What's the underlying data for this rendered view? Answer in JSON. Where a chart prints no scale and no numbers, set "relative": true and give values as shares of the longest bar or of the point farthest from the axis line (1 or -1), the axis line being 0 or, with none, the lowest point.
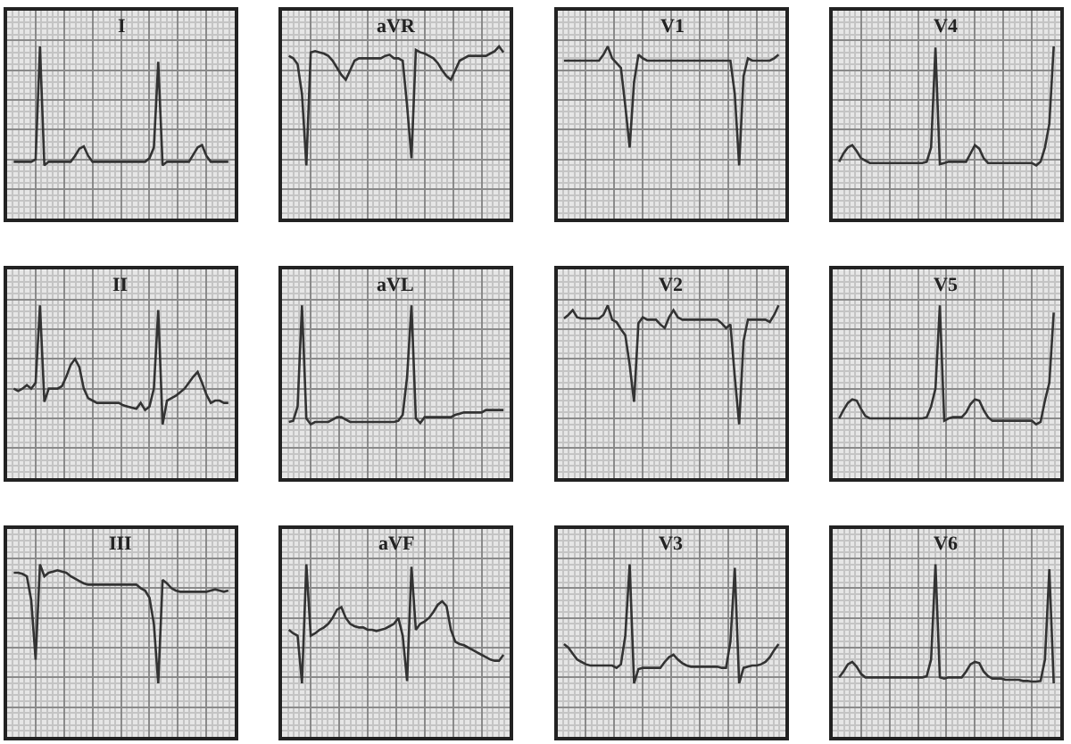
{
  "chart_data": [
    {
      "type": "line",
      "title": "I",
      "relative": true,
      "grid": true,
      "tick_labels": false,
      "categories": [
        null,
        null,
        null,
        null,
        null,
        null,
        null,
        null,
        null,
        null,
        null,
        null,
        null,
        null,
        null,
        null,
        null,
        null,
        null,
        null,
        null,
        null,
        null,
        null,
        null,
        null,
        null,
        null,
        null,
        null,
        null,
        null,
        null,
        null,
        null,
        null,
        null,
        null,
        null,
        null,
        null,
        null,
        null,
        null,
        null,
        null,
        null,
        null,
        null,
        null
      ],
      "series": [
        {
          "color": "#333333",
          "values": [
            0.03,
            0.03,
            0.03,
            0.03,
            0.03,
            0.05,
            1.0,
            0.0,
            0.03,
            0.03,
            0.03,
            0.03,
            0.03,
            0.03,
            0.08,
            0.14,
            0.16,
            0.08,
            0.03,
            0.03,
            0.03,
            0.03,
            0.03,
            0.03,
            0.03,
            0.03,
            0.03,
            0.03,
            0.03,
            0.03,
            0.03,
            0.06,
            0.15,
            0.87,
            0.0,
            0.03,
            0.03,
            0.03,
            0.03,
            0.03,
            0.03,
            0.09,
            0.15,
            0.17,
            0.08,
            0.03,
            0.03,
            0.03,
            0.03,
            0.03
          ]
        }
      ]
    },
    {
      "type": "line",
      "title": "aVR",
      "relative": true,
      "grid": true,
      "tick_labels": false,
      "categories": [
        null,
        null,
        null,
        null,
        null,
        null,
        null,
        null,
        null,
        null,
        null,
        null,
        null,
        null,
        null,
        null,
        null,
        null,
        null,
        null,
        null,
        null,
        null,
        null,
        null,
        null,
        null,
        null,
        null,
        null,
        null,
        null,
        null,
        null,
        null,
        null,
        null,
        null,
        null,
        null,
        null,
        null,
        null,
        null,
        null,
        null,
        null,
        null,
        null,
        null
      ],
      "series": [
        {
          "color": "#333333",
          "values": [
            0.92,
            0.9,
            0.85,
            0.6,
            0.0,
            0.95,
            0.96,
            0.95,
            0.94,
            0.92,
            0.88,
            0.82,
            0.76,
            0.72,
            0.8,
            0.88,
            0.9,
            0.9,
            0.9,
            0.9,
            0.9,
            0.9,
            0.92,
            0.93,
            0.9,
            0.9,
            0.88,
            0.5,
            0.06,
            0.97,
            0.95,
            0.94,
            0.92,
            0.9,
            0.86,
            0.8,
            0.75,
            0.72,
            0.8,
            0.88,
            0.9,
            0.92,
            0.92,
            0.92,
            0.92,
            0.92,
            0.94,
            0.96,
            1.0,
            0.95
          ]
        }
      ]
    },
    {
      "type": "line",
      "title": "V1",
      "relative": true,
      "grid": true,
      "tick_labels": false,
      "categories": [
        null,
        null,
        null,
        null,
        null,
        null,
        null,
        null,
        null,
        null,
        null,
        null,
        null,
        null,
        null,
        null,
        null,
        null,
        null,
        null,
        null,
        null,
        null,
        null,
        null,
        null,
        null,
        null,
        null,
        null,
        null,
        null,
        null,
        null,
        null,
        null,
        null,
        null,
        null,
        null,
        null,
        null,
        null,
        null,
        null,
        null,
        null,
        null,
        null,
        null
      ],
      "series": [
        {
          "color": "#333333",
          "values": [
            0.88,
            0.88,
            0.88,
            0.88,
            0.88,
            0.88,
            0.88,
            0.88,
            0.88,
            0.93,
            1.0,
            0.9,
            0.86,
            0.82,
            0.5,
            0.15,
            0.7,
            0.93,
            0.9,
            0.88,
            0.88,
            0.88,
            0.88,
            0.88,
            0.88,
            0.88,
            0.88,
            0.88,
            0.88,
            0.88,
            0.88,
            0.88,
            0.88,
            0.88,
            0.88,
            0.88,
            0.88,
            0.88,
            0.88,
            0.6,
            0.0,
            0.75,
            0.9,
            0.88,
            0.88,
            0.88,
            0.88,
            0.88,
            0.9,
            0.93
          ]
        }
      ]
    },
    {
      "type": "line",
      "title": "V4",
      "relative": true,
      "grid": true,
      "tick_labels": false,
      "categories": [
        null,
        null,
        null,
        null,
        null,
        null,
        null,
        null,
        null,
        null,
        null,
        null,
        null,
        null,
        null,
        null,
        null,
        null,
        null,
        null,
        null,
        null,
        null,
        null,
        null,
        null,
        null,
        null,
        null,
        null,
        null,
        null,
        null,
        null,
        null,
        null,
        null,
        null,
        null,
        null,
        null,
        null,
        null,
        null,
        null,
        null,
        null,
        null,
        null,
        null
      ],
      "series": [
        {
          "color": "#333333",
          "values": [
            0.03,
            0.1,
            0.15,
            0.17,
            0.12,
            0.06,
            0.04,
            0.02,
            0.02,
            0.02,
            0.02,
            0.02,
            0.02,
            0.02,
            0.02,
            0.02,
            0.02,
            0.02,
            0.02,
            0.02,
            0.03,
            0.15,
            0.99,
            0.01,
            0.02,
            0.03,
            0.03,
            0.03,
            0.03,
            0.03,
            0.1,
            0.17,
            0.14,
            0.06,
            0.02,
            0.02,
            0.02,
            0.02,
            0.02,
            0.02,
            0.02,
            0.02,
            0.02,
            0.02,
            0.02,
            0.0,
            0.03,
            0.15,
            0.35,
            1.0
          ]
        }
      ]
    },
    {
      "type": "line",
      "title": "II",
      "relative": true,
      "grid": true,
      "tick_labels": false,
      "categories": [
        null,
        null,
        null,
        null,
        null,
        null,
        null,
        null,
        null,
        null,
        null,
        null,
        null,
        null,
        null,
        null,
        null,
        null,
        null,
        null,
        null,
        null,
        null,
        null,
        null,
        null,
        null,
        null,
        null,
        null,
        null,
        null,
        null,
        null,
        null,
        null,
        null,
        null,
        null,
        null,
        null,
        null,
        null,
        null,
        null,
        null,
        null,
        null,
        null,
        null
      ],
      "series": [
        {
          "color": "#333333",
          "values": [
            0.3,
            0.28,
            0.3,
            0.33,
            0.3,
            0.35,
            1.0,
            0.19,
            0.3,
            0.3,
            0.3,
            0.32,
            0.4,
            0.5,
            0.55,
            0.48,
            0.3,
            0.22,
            0.2,
            0.18,
            0.18,
            0.18,
            0.18,
            0.18,
            0.18,
            0.16,
            0.15,
            0.14,
            0.13,
            0.18,
            0.12,
            0.15,
            0.3,
            0.96,
            0.0,
            0.2,
            0.22,
            0.24,
            0.27,
            0.3,
            0.35,
            0.4,
            0.44,
            0.35,
            0.25,
            0.18,
            0.2,
            0.2,
            0.18,
            0.18
          ]
        }
      ]
    },
    {
      "type": "line",
      "title": "aVL",
      "relative": true,
      "grid": true,
      "tick_labels": false,
      "categories": [
        null,
        null,
        null,
        null,
        null,
        null,
        null,
        null,
        null,
        null,
        null,
        null,
        null,
        null,
        null,
        null,
        null,
        null,
        null,
        null,
        null,
        null,
        null,
        null,
        null,
        null,
        null,
        null,
        null,
        null,
        null,
        null,
        null,
        null,
        null,
        null,
        null,
        null,
        null,
        null,
        null,
        null,
        null,
        null,
        null,
        null,
        null,
        null,
        null,
        null
      ],
      "series": [
        {
          "color": "#333333",
          "values": [
            0.02,
            0.03,
            0.15,
            1.0,
            0.05,
            0.0,
            0.02,
            0.02,
            0.02,
            0.02,
            0.04,
            0.06,
            0.06,
            0.04,
            0.02,
            0.02,
            0.02,
            0.02,
            0.02,
            0.02,
            0.02,
            0.02,
            0.02,
            0.02,
            0.02,
            0.03,
            0.08,
            0.4,
            1.0,
            0.05,
            0.01,
            0.06,
            0.06,
            0.06,
            0.06,
            0.06,
            0.06,
            0.06,
            0.08,
            0.09,
            0.1,
            0.1,
            0.1,
            0.1,
            0.1,
            0.12,
            0.12,
            0.12,
            0.12,
            0.12
          ]
        }
      ]
    },
    {
      "type": "line",
      "title": "V2",
      "relative": true,
      "grid": true,
      "tick_labels": false,
      "categories": [
        null,
        null,
        null,
        null,
        null,
        null,
        null,
        null,
        null,
        null,
        null,
        null,
        null,
        null,
        null,
        null,
        null,
        null,
        null,
        null,
        null,
        null,
        null,
        null,
        null,
        null,
        null,
        null,
        null,
        null,
        null,
        null,
        null,
        null,
        null,
        null,
        null,
        null,
        null,
        null,
        null,
        null,
        null,
        null,
        null,
        null,
        null,
        null,
        null,
        null
      ],
      "series": [
        {
          "color": "#333333",
          "values": [
            0.89,
            0.92,
            0.96,
            0.9,
            0.89,
            0.89,
            0.89,
            0.89,
            0.89,
            0.92,
            1.0,
            0.88,
            0.86,
            0.8,
            0.75,
            0.5,
            0.19,
            0.85,
            0.9,
            0.88,
            0.88,
            0.88,
            0.84,
            0.81,
            0.9,
            0.96,
            0.9,
            0.88,
            0.88,
            0.88,
            0.88,
            0.88,
            0.88,
            0.88,
            0.88,
            0.88,
            0.85,
            0.81,
            0.84,
            0.4,
            0.0,
            0.7,
            0.88,
            0.88,
            0.88,
            0.88,
            0.88,
            0.86,
            0.92,
            1.0
          ]
        }
      ]
    },
    {
      "type": "line",
      "title": "V5",
      "relative": true,
      "grid": true,
      "tick_labels": false,
      "categories": [
        null,
        null,
        null,
        null,
        null,
        null,
        null,
        null,
        null,
        null,
        null,
        null,
        null,
        null,
        null,
        null,
        null,
        null,
        null,
        null,
        null,
        null,
        null,
        null,
        null,
        null,
        null,
        null,
        null,
        null,
        null,
        null,
        null,
        null,
        null,
        null,
        null,
        null,
        null,
        null,
        null,
        null,
        null,
        null,
        null,
        null,
        null,
        null,
        null,
        null
      ],
      "series": [
        {
          "color": "#333333",
          "values": [
            0.05,
            0.12,
            0.18,
            0.21,
            0.2,
            0.13,
            0.07,
            0.05,
            0.05,
            0.05,
            0.05,
            0.05,
            0.05,
            0.05,
            0.05,
            0.05,
            0.05,
            0.05,
            0.05,
            0.05,
            0.06,
            0.15,
            0.3,
            1.0,
            0.03,
            0.05,
            0.06,
            0.06,
            0.06,
            0.1,
            0.17,
            0.21,
            0.2,
            0.12,
            0.06,
            0.03,
            0.03,
            0.03,
            0.03,
            0.03,
            0.03,
            0.03,
            0.03,
            0.03,
            0.03,
            0.0,
            0.02,
            0.2,
            0.35,
            0.94
          ]
        }
      ]
    },
    {
      "type": "line",
      "title": "III",
      "relative": true,
      "grid": true,
      "tick_labels": false,
      "categories": [
        null,
        null,
        null,
        null,
        null,
        null,
        null,
        null,
        null,
        null,
        null,
        null,
        null,
        null,
        null,
        null,
        null,
        null,
        null,
        null,
        null,
        null,
        null,
        null,
        null,
        null,
        null,
        null,
        null,
        null,
        null,
        null,
        null,
        null,
        null,
        null,
        null,
        null,
        null,
        null,
        null,
        null,
        null,
        null,
        null,
        null,
        null,
        null,
        null,
        null
      ],
      "series": [
        {
          "color": "#333333",
          "values": [
            0.93,
            0.93,
            0.92,
            0.9,
            0.7,
            0.2,
            1.0,
            0.9,
            0.93,
            0.94,
            0.95,
            0.94,
            0.93,
            0.9,
            0.88,
            0.86,
            0.84,
            0.83,
            0.83,
            0.83,
            0.83,
            0.83,
            0.83,
            0.83,
            0.83,
            0.83,
            0.83,
            0.83,
            0.83,
            0.8,
            0.78,
            0.72,
            0.5,
            0.0,
            0.87,
            0.84,
            0.8,
            0.78,
            0.77,
            0.77,
            0.77,
            0.77,
            0.77,
            0.77,
            0.77,
            0.78,
            0.79,
            0.78,
            0.77,
            0.78
          ]
        }
      ]
    },
    {
      "type": "line",
      "title": "aVF",
      "relative": true,
      "grid": true,
      "tick_labels": false,
      "categories": [
        null,
        null,
        null,
        null,
        null,
        null,
        null,
        null,
        null,
        null,
        null,
        null,
        null,
        null,
        null,
        null,
        null,
        null,
        null,
        null,
        null,
        null,
        null,
        null,
        null,
        null,
        null,
        null,
        null,
        null,
        null,
        null,
        null,
        null,
        null,
        null,
        null,
        null,
        null,
        null,
        null,
        null,
        null,
        null,
        null,
        null,
        null,
        null,
        null,
        null
      ],
      "series": [
        {
          "color": "#333333",
          "values": [
            0.45,
            0.42,
            0.4,
            0.0,
            1.0,
            0.4,
            0.42,
            0.45,
            0.47,
            0.5,
            0.55,
            0.62,
            0.64,
            0.55,
            0.5,
            0.48,
            0.47,
            0.47,
            0.45,
            0.45,
            0.44,
            0.45,
            0.46,
            0.48,
            0.5,
            0.55,
            0.4,
            0.02,
            0.98,
            0.45,
            0.5,
            0.52,
            0.55,
            0.6,
            0.66,
            0.69,
            0.65,
            0.45,
            0.35,
            0.33,
            0.32,
            0.3,
            0.28,
            0.26,
            0.24,
            0.22,
            0.2,
            0.19,
            0.19,
            0.24
          ]
        }
      ]
    },
    {
      "type": "line",
      "title": "V3",
      "relative": true,
      "grid": true,
      "tick_labels": false,
      "categories": [
        null,
        null,
        null,
        null,
        null,
        null,
        null,
        null,
        null,
        null,
        null,
        null,
        null,
        null,
        null,
        null,
        null,
        null,
        null,
        null,
        null,
        null,
        null,
        null,
        null,
        null,
        null,
        null,
        null,
        null,
        null,
        null,
        null,
        null,
        null,
        null,
        null,
        null,
        null,
        null,
        null,
        null,
        null,
        null,
        null,
        null,
        null,
        null,
        null,
        null
      ],
      "series": [
        {
          "color": "#333333",
          "values": [
            0.33,
            0.3,
            0.25,
            0.2,
            0.18,
            0.16,
            0.15,
            0.15,
            0.15,
            0.15,
            0.15,
            0.15,
            0.13,
            0.16,
            0.4,
            1.0,
            0.0,
            0.12,
            0.13,
            0.13,
            0.13,
            0.13,
            0.13,
            0.18,
            0.22,
            0.24,
            0.2,
            0.17,
            0.15,
            0.14,
            0.14,
            0.14,
            0.14,
            0.14,
            0.14,
            0.14,
            0.13,
            0.13,
            0.35,
            0.97,
            0.0,
            0.13,
            0.14,
            0.15,
            0.15,
            0.16,
            0.18,
            0.22,
            0.28,
            0.33
          ]
        }
      ]
    },
    {
      "type": "line",
      "title": "V6",
      "relative": true,
      "grid": true,
      "tick_labels": false,
      "categories": [
        null,
        null,
        null,
        null,
        null,
        null,
        null,
        null,
        null,
        null,
        null,
        null,
        null,
        null,
        null,
        null,
        null,
        null,
        null,
        null,
        null,
        null,
        null,
        null,
        null,
        null,
        null,
        null,
        null,
        null,
        null,
        null,
        null,
        null,
        null,
        null,
        null,
        null,
        null,
        null,
        null,
        null,
        null,
        null,
        null,
        null,
        null,
        null,
        null,
        null
      ],
      "series": [
        {
          "color": "#333333",
          "values": [
            0.05,
            0.1,
            0.16,
            0.18,
            0.14,
            0.08,
            0.05,
            0.05,
            0.05,
            0.05,
            0.05,
            0.05,
            0.05,
            0.05,
            0.05,
            0.05,
            0.05,
            0.05,
            0.05,
            0.05,
            0.06,
            0.2,
            1.0,
            0.05,
            0.04,
            0.05,
            0.05,
            0.05,
            0.05,
            0.1,
            0.16,
            0.18,
            0.17,
            0.1,
            0.06,
            0.04,
            0.04,
            0.04,
            0.03,
            0.03,
            0.03,
            0.03,
            0.02,
            0.02,
            0.015,
            0.015,
            0.02,
            0.2,
            0.96,
            0.0
          ]
        }
      ]
    }
  ]
}
